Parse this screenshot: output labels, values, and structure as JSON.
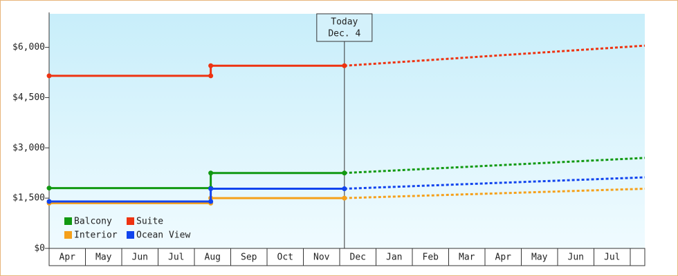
{
  "chart_data": {
    "type": "line",
    "ylim": [
      0,
      7000
    ],
    "yticks": [
      {
        "value": 0,
        "label": "$0"
      },
      {
        "value": 1500,
        "label": "$1,500"
      },
      {
        "value": 3000,
        "label": "$3,000"
      },
      {
        "value": 4500,
        "label": "$4,500"
      },
      {
        "value": 6000,
        "label": "$6,000"
      }
    ],
    "xlim": [
      0,
      16.4
    ],
    "categories": [
      "Apr",
      "May",
      "Jun",
      "Jul",
      "Aug",
      "Sep",
      "Oct",
      "Nov",
      "Dec",
      "Jan",
      "Feb",
      "Mar",
      "Apr",
      "May",
      "Jun",
      "Jul"
    ],
    "today": {
      "x": 8.13,
      "label": [
        "Today",
        "Dec. 4"
      ]
    },
    "legend": "lower left",
    "series": [
      {
        "name": "Balcony",
        "color": "#119911",
        "x": [
          0,
          4.45,
          4.45,
          8.13,
          16.4
        ],
        "values": [
          1800,
          1800,
          2250,
          2250,
          2700
        ]
      },
      {
        "name": "Suite",
        "color": "#ee3311",
        "x": [
          0,
          4.45,
          4.45,
          8.13,
          16.4
        ],
        "values": [
          5150,
          5150,
          5450,
          5450,
          6050
        ]
      },
      {
        "name": "Interior",
        "color": "#f5a01a",
        "x": [
          0,
          4.45,
          4.45,
          8.13,
          16.4
        ],
        "values": [
          1350,
          1350,
          1500,
          1500,
          1780
        ]
      },
      {
        "name": "Ocean View",
        "color": "#1144ee",
        "x": [
          0,
          4.45,
          4.45,
          8.13,
          16.4
        ],
        "values": [
          1400,
          1400,
          1780,
          1780,
          2120
        ]
      }
    ]
  }
}
